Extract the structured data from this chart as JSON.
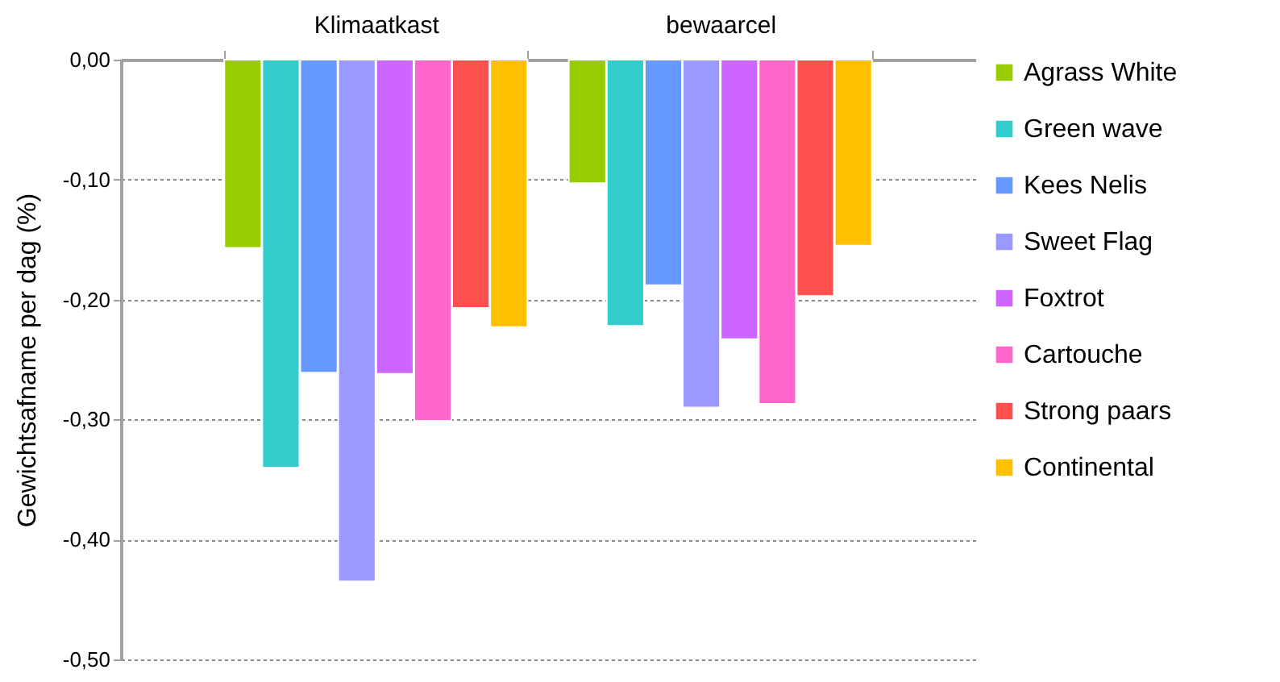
{
  "chart_data": {
    "type": "bar",
    "ylabel": "Gewichtsafname per dag (%)",
    "categories": [
      "Klimaatkast",
      "bewaarcel"
    ],
    "series": [
      {
        "name": "Agrass White",
        "color": "#99cc00",
        "values": [
          -0.157,
          -0.103
        ]
      },
      {
        "name": "Green wave",
        "color": "#33cccc",
        "values": [
          -0.34,
          -0.222
        ]
      },
      {
        "name": "Kees Nelis",
        "color": "#6699ff",
        "values": [
          -0.261,
          -0.188
        ]
      },
      {
        "name": "Sweet Flag",
        "color": "#9999ff",
        "values": [
          -0.435,
          -0.29
        ]
      },
      {
        "name": "Foxtrot",
        "color": "#cc66ff",
        "values": [
          -0.262,
          -0.233
        ]
      },
      {
        "name": "Cartouche",
        "color": "#ff66cc",
        "values": [
          -0.301,
          -0.287
        ]
      },
      {
        "name": "Strong paars",
        "color": "#ff5050",
        "values": [
          -0.207,
          -0.197
        ]
      },
      {
        "name": "Continental",
        "color": "#ffc000",
        "values": [
          -0.223,
          -0.155
        ]
      }
    ],
    "ylim": [
      -0.5,
      0
    ],
    "yticks": [
      {
        "value": 0,
        "label": "0,00"
      },
      {
        "value": -0.1,
        "label": "-0,10"
      },
      {
        "value": -0.2,
        "label": "-0,20"
      },
      {
        "value": -0.3,
        "label": "-0,30"
      },
      {
        "value": -0.4,
        "label": "-0,40"
      },
      {
        "value": -0.5,
        "label": "-0,50"
      }
    ],
    "grid": "y",
    "legend": "right"
  }
}
